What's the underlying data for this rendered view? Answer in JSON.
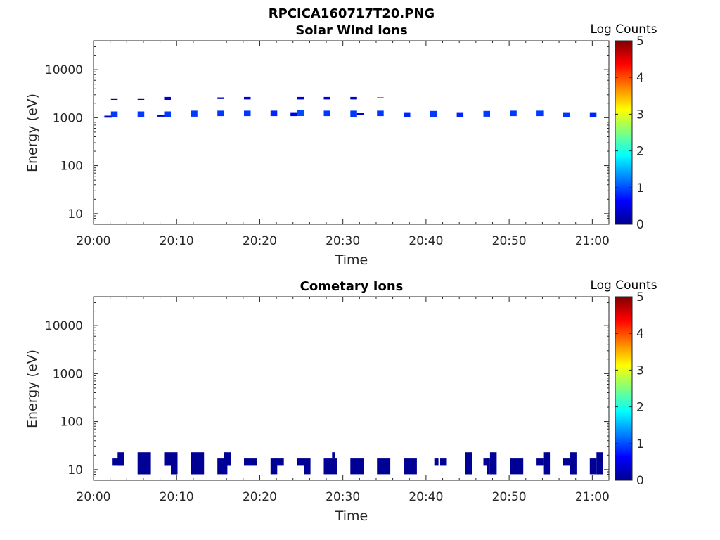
{
  "figure_title": "RPCICA160717T20.PNG",
  "colorbar": {
    "label": "Log Counts",
    "ticks": [
      "0",
      "1",
      "2",
      "3",
      "4",
      "5"
    ],
    "range": [
      0,
      5
    ],
    "colormap": "jet"
  },
  "chart_data": [
    {
      "type": "heatmap",
      "title": "Solar Wind Ions",
      "xlabel": "Time",
      "ylabel": "Energy (eV)",
      "x_ticks": [
        "20:00",
        "20:10",
        "20:20",
        "20:30",
        "20:40",
        "20:50",
        "21:00"
      ],
      "y_ticks": [
        "10",
        "100",
        "1000",
        "10000"
      ],
      "y_scale": "log",
      "xlim": [
        "20:00",
        "21:02"
      ],
      "ylim": [
        6,
        40000
      ],
      "cells": [
        {
          "t0": "20:01.3",
          "t1": "20:02.2",
          "e_lo": 1000,
          "e_hi": 1100,
          "log_counts": 0.4
        },
        {
          "t0": "20:02.1",
          "t1": "20:02.9",
          "e_lo": 1020,
          "e_hi": 1350,
          "log_counts": 0.9
        },
        {
          "t0": "20:02.1",
          "t1": "20:02.9",
          "e_lo": 2350,
          "e_hi": 2450,
          "log_counts": 0.3
        },
        {
          "t0": "20:05.3",
          "t1": "20:06.1",
          "e_lo": 1020,
          "e_hi": 1350,
          "log_counts": 0.9
        },
        {
          "t0": "20:05.3",
          "t1": "20:06.1",
          "e_lo": 2350,
          "e_hi": 2450,
          "log_counts": 0.3
        },
        {
          "t0": "20:07.7",
          "t1": "20:08.5",
          "e_lo": 1050,
          "e_hi": 1130,
          "log_counts": 0.4
        },
        {
          "t0": "20:08.5",
          "t1": "20:09.3",
          "e_lo": 1020,
          "e_hi": 1350,
          "log_counts": 0.9
        },
        {
          "t0": "20:08.5",
          "t1": "20:09.3",
          "e_lo": 2350,
          "e_hi": 2700,
          "log_counts": 0.4
        },
        {
          "t0": "20:11.7",
          "t1": "20:12.5",
          "e_lo": 1050,
          "e_hi": 1400,
          "log_counts": 0.9
        },
        {
          "t0": "20:14.9",
          "t1": "20:15.7",
          "e_lo": 1080,
          "e_hi": 1400,
          "log_counts": 0.9
        },
        {
          "t0": "20:14.9",
          "t1": "20:15.7",
          "e_lo": 2450,
          "e_hi": 2650,
          "log_counts": 0.3
        },
        {
          "t0": "20:18.1",
          "t1": "20:18.9",
          "e_lo": 1080,
          "e_hi": 1400,
          "log_counts": 0.9
        },
        {
          "t0": "20:18.1",
          "t1": "20:18.9",
          "e_lo": 2400,
          "e_hi": 2700,
          "log_counts": 0.4
        },
        {
          "t0": "20:21.3",
          "t1": "20:22.1",
          "e_lo": 1080,
          "e_hi": 1400,
          "log_counts": 0.8
        },
        {
          "t0": "20:23.7",
          "t1": "20:24.5",
          "e_lo": 1080,
          "e_hi": 1300,
          "log_counts": 0.5
        },
        {
          "t0": "20:24.5",
          "t1": "20:25.3",
          "e_lo": 1080,
          "e_hi": 1450,
          "log_counts": 1.0
        },
        {
          "t0": "20:24.5",
          "t1": "20:25.3",
          "e_lo": 2400,
          "e_hi": 2700,
          "log_counts": 0.4
        },
        {
          "t0": "20:27.7",
          "t1": "20:28.5",
          "e_lo": 1080,
          "e_hi": 1400,
          "log_counts": 0.9
        },
        {
          "t0": "20:27.7",
          "t1": "20:28.5",
          "e_lo": 2400,
          "e_hi": 2700,
          "log_counts": 0.4
        },
        {
          "t0": "20:30.9",
          "t1": "20:31.7",
          "e_lo": 1020,
          "e_hi": 1400,
          "log_counts": 0.9
        },
        {
          "t0": "20:30.9",
          "t1": "20:31.7",
          "e_lo": 2400,
          "e_hi": 2700,
          "log_counts": 0.4
        },
        {
          "t0": "20:31.7",
          "t1": "20:32.5",
          "e_lo": 1160,
          "e_hi": 1240,
          "log_counts": 0.4
        },
        {
          "t0": "20:34.1",
          "t1": "20:34.9",
          "e_lo": 1080,
          "e_hi": 1400,
          "log_counts": 0.9
        },
        {
          "t0": "20:34.1",
          "t1": "20:34.9",
          "e_lo": 2550,
          "e_hi": 2650,
          "log_counts": 0.3
        },
        {
          "t0": "20:37.3",
          "t1": "20:38.1",
          "e_lo": 1020,
          "e_hi": 1300,
          "log_counts": 0.8
        },
        {
          "t0": "20:40.5",
          "t1": "20:41.3",
          "e_lo": 1020,
          "e_hi": 1380,
          "log_counts": 0.9
        },
        {
          "t0": "20:43.7",
          "t1": "20:44.5",
          "e_lo": 1020,
          "e_hi": 1300,
          "log_counts": 0.8
        },
        {
          "t0": "20:46.9",
          "t1": "20:47.7",
          "e_lo": 1050,
          "e_hi": 1380,
          "log_counts": 0.9
        },
        {
          "t0": "20:50.1",
          "t1": "20:50.9",
          "e_lo": 1080,
          "e_hi": 1400,
          "log_counts": 0.9
        },
        {
          "t0": "20:53.3",
          "t1": "20:54.1",
          "e_lo": 1080,
          "e_hi": 1400,
          "log_counts": 0.9
        },
        {
          "t0": "20:56.5",
          "t1": "20:57.3",
          "e_lo": 1020,
          "e_hi": 1300,
          "log_counts": 0.9
        },
        {
          "t0": "20:59.7",
          "t1": "21:00.5",
          "e_lo": 1020,
          "e_hi": 1300,
          "log_counts": 0.8
        }
      ]
    },
    {
      "type": "heatmap",
      "title": "Cometary Ions",
      "xlabel": "Time",
      "ylabel": "Energy (eV)",
      "x_ticks": [
        "20:00",
        "20:10",
        "20:20",
        "20:30",
        "20:40",
        "20:50",
        "21:00"
      ],
      "y_ticks": [
        "10",
        "100",
        "1000",
        "10000"
      ],
      "y_scale": "log",
      "xlim": [
        "20:00",
        "21:02"
      ],
      "ylim": [
        6,
        40000
      ],
      "cells": [
        {
          "t0": "20:02.3",
          "t1": "20:03.1",
          "e_lo": 12,
          "e_hi": 17,
          "log_counts": 0.1
        },
        {
          "t0": "20:02.9",
          "t1": "20:03.7",
          "e_lo": 12,
          "e_hi": 23,
          "log_counts": 0.1
        },
        {
          "t0": "20:05.3",
          "t1": "20:06.9",
          "e_lo": 8,
          "e_hi": 23,
          "log_counts": 0.1
        },
        {
          "t0": "20:08.5",
          "t1": "20:09.3",
          "e_lo": 12,
          "e_hi": 23,
          "log_counts": 0.1
        },
        {
          "t0": "20:09.3",
          "t1": "20:10.1",
          "e_lo": 8,
          "e_hi": 23,
          "log_counts": 0.1
        },
        {
          "t0": "20:11.7",
          "t1": "20:13.3",
          "e_lo": 8,
          "e_hi": 23,
          "log_counts": 0.1
        },
        {
          "t0": "20:14.9",
          "t1": "20:16.1",
          "e_lo": 8,
          "e_hi": 17,
          "log_counts": 0.1
        },
        {
          "t0": "20:15.7",
          "t1": "20:16.5",
          "e_lo": 12,
          "e_hi": 23,
          "log_counts": 0.1
        },
        {
          "t0": "20:18.1",
          "t1": "20:19.7",
          "e_lo": 12,
          "e_hi": 17,
          "log_counts": 0.1
        },
        {
          "t0": "20:21.3",
          "t1": "20:22.1",
          "e_lo": 8,
          "e_hi": 17,
          "log_counts": 0.1
        },
        {
          "t0": "20:21.9",
          "t1": "20:22.9",
          "e_lo": 12,
          "e_hi": 17,
          "log_counts": 0.1
        },
        {
          "t0": "20:24.5",
          "t1": "20:25.3",
          "e_lo": 12,
          "e_hi": 17,
          "log_counts": 0.1
        },
        {
          "t0": "20:25.3",
          "t1": "20:26.1",
          "e_lo": 8,
          "e_hi": 17,
          "log_counts": 0.1
        },
        {
          "t0": "20:27.7",
          "t1": "20:29.3",
          "e_lo": 8,
          "e_hi": 17,
          "log_counts": 0.1
        },
        {
          "t0": "20:28.7",
          "t1": "20:29.1",
          "e_lo": 17,
          "e_hi": 23,
          "log_counts": 0.1
        },
        {
          "t0": "20:30.9",
          "t1": "20:32.5",
          "e_lo": 8,
          "e_hi": 17,
          "log_counts": 0.1
        },
        {
          "t0": "20:34.1",
          "t1": "20:35.7",
          "e_lo": 8,
          "e_hi": 17,
          "log_counts": 0.1
        },
        {
          "t0": "20:37.3",
          "t1": "20:38.9",
          "e_lo": 8,
          "e_hi": 17,
          "log_counts": 0.1
        },
        {
          "t0": "20:41.0",
          "t1": "20:41.5",
          "e_lo": 12,
          "e_hi": 17,
          "log_counts": 0.1
        },
        {
          "t0": "20:41.7",
          "t1": "20:42.5",
          "e_lo": 12,
          "e_hi": 17,
          "log_counts": 0.1
        },
        {
          "t0": "20:44.7",
          "t1": "20:45.5",
          "e_lo": 8,
          "e_hi": 23,
          "log_counts": 0.1
        },
        {
          "t0": "20:46.9",
          "t1": "20:47.5",
          "e_lo": 12,
          "e_hi": 17,
          "log_counts": 0.1
        },
        {
          "t0": "20:47.3",
          "t1": "20:47.7",
          "e_lo": 8,
          "e_hi": 17,
          "log_counts": 0.1
        },
        {
          "t0": "20:47.7",
          "t1": "20:48.5",
          "e_lo": 8,
          "e_hi": 23,
          "log_counts": 0.1
        },
        {
          "t0": "20:50.1",
          "t1": "20:51.7",
          "e_lo": 8,
          "e_hi": 17,
          "log_counts": 0.1
        },
        {
          "t0": "20:53.3",
          "t1": "20:54.1",
          "e_lo": 12,
          "e_hi": 17,
          "log_counts": 0.1
        },
        {
          "t0": "20:54.1",
          "t1": "20:54.9",
          "e_lo": 8,
          "e_hi": 23,
          "log_counts": 0.1
        },
        {
          "t0": "20:56.5",
          "t1": "20:57.3",
          "e_lo": 12,
          "e_hi": 17,
          "log_counts": 0.1
        },
        {
          "t0": "20:57.3",
          "t1": "20:58.1",
          "e_lo": 8,
          "e_hi": 23,
          "log_counts": 0.1
        },
        {
          "t0": "20:59.7",
          "t1": "21:00.5",
          "e_lo": 8,
          "e_hi": 17,
          "log_counts": 0.1
        },
        {
          "t0": "21:00.5",
          "t1": "21:01.3",
          "e_lo": 8,
          "e_hi": 23,
          "log_counts": 0.1
        }
      ]
    }
  ]
}
